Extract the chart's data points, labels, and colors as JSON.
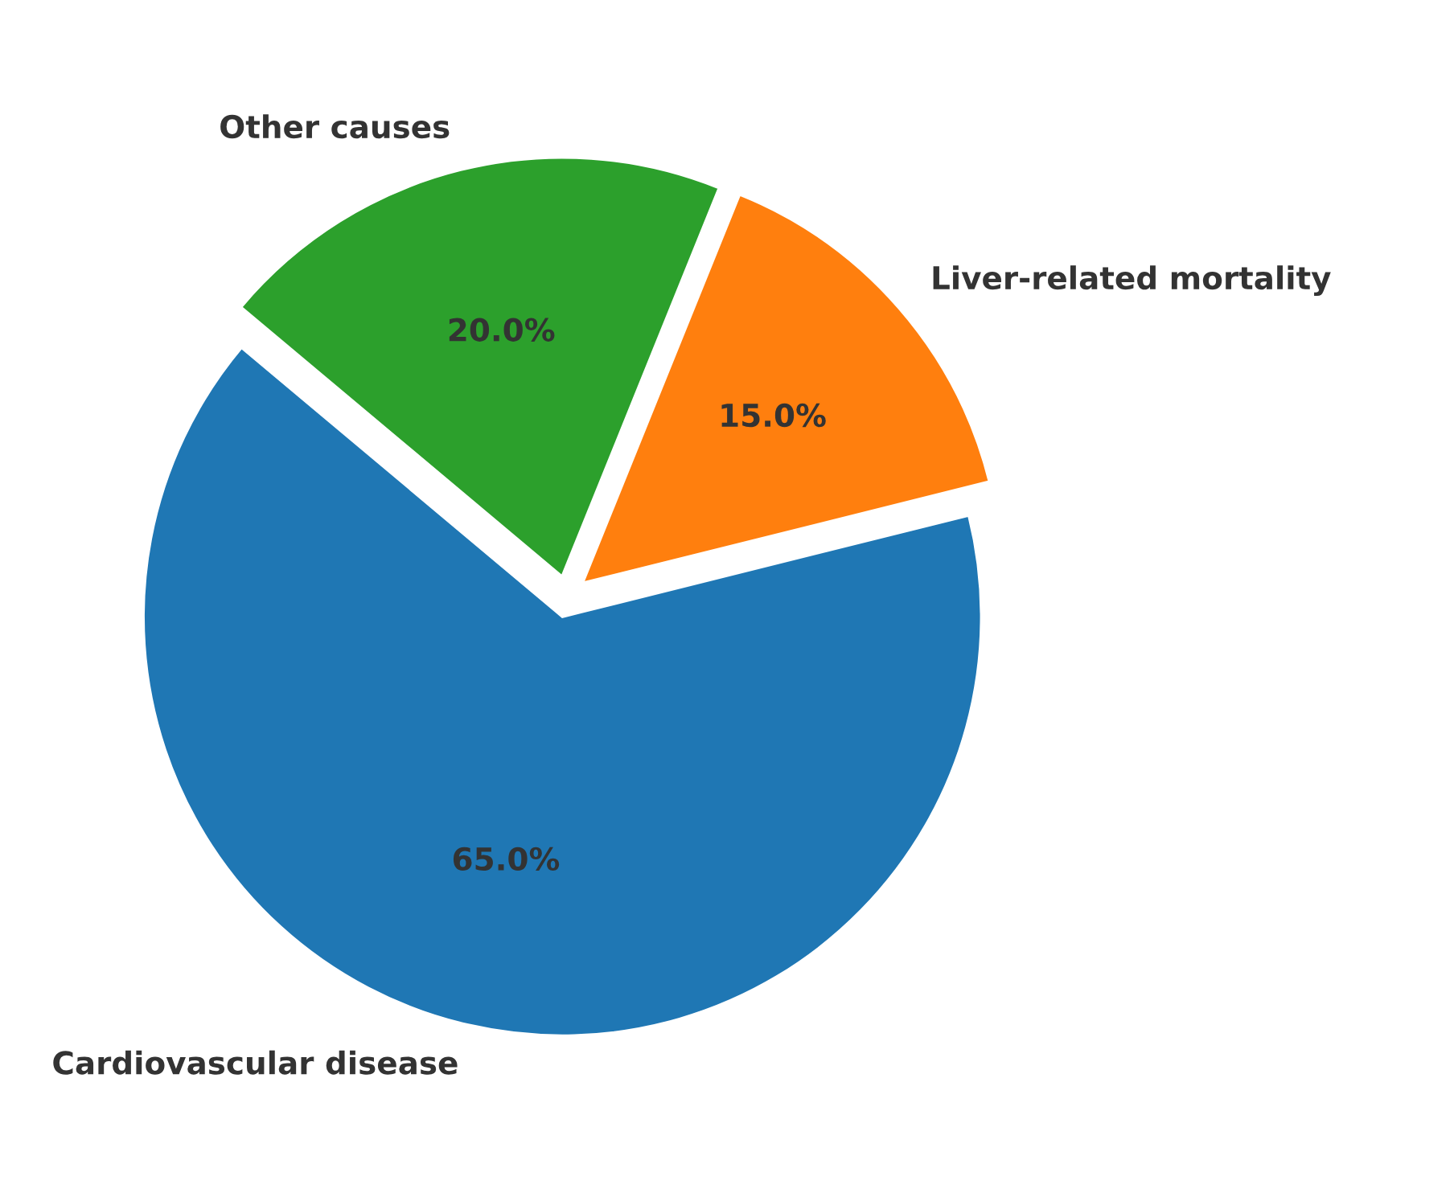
{
  "chart_data": {
    "type": "pie",
    "categories": [
      "Cardiovascular disease",
      "Liver-related mortality",
      "Other causes"
    ],
    "values": [
      65,
      15,
      20
    ],
    "value_labels": [
      "65.0%",
      "15.0%",
      "20.0%"
    ],
    "colors": [
      "#1f77b4",
      "#ff7f0e",
      "#2ca02c"
    ]
  }
}
